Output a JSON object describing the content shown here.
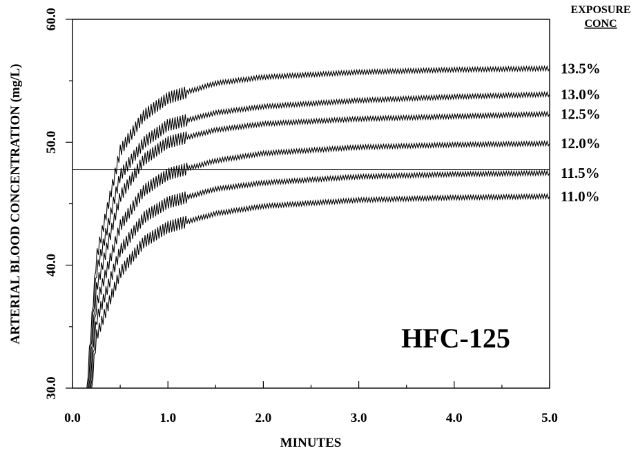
{
  "chart_data": {
    "type": "line",
    "title": "",
    "xlabel": "MINUTES",
    "ylabel": "ARTERIAL BLOOD CONCENTRATION (mg/L)",
    "xlim": [
      0.0,
      5.0
    ],
    "ylim": [
      30.0,
      60.0
    ],
    "x_ticks": [
      "0.0",
      "1.0",
      "2.0",
      "3.0",
      "4.0",
      "5.0"
    ],
    "y_ticks": [
      "30.0",
      "40.0",
      "50.0",
      "60.0"
    ],
    "grid": false,
    "annotation": "HFC-125",
    "legend_title": [
      "EXPOSURE",
      "CONC"
    ],
    "reference_line": {
      "y": 47.8
    },
    "series": [
      {
        "name": "13.5%",
        "x": [
          0.15,
          0.25,
          0.5,
          0.75,
          1.0,
          1.5,
          2.0,
          3.0,
          4.0,
          5.0
        ],
        "values": [
          30.0,
          40.6,
          49.3,
          52.2,
          53.6,
          54.8,
          55.3,
          55.7,
          55.9,
          56.0
        ]
      },
      {
        "name": "13.0%",
        "x": [
          0.16,
          0.25,
          0.5,
          0.75,
          1.0,
          1.5,
          2.0,
          3.0,
          4.0,
          5.0
        ],
        "values": [
          30.0,
          39.4,
          47.3,
          50.0,
          51.4,
          52.4,
          52.9,
          53.4,
          53.7,
          53.9
        ]
      },
      {
        "name": "12.5%",
        "x": [
          0.17,
          0.25,
          0.5,
          0.75,
          1.0,
          1.5,
          2.0,
          3.0,
          4.0,
          5.0
        ],
        "values": [
          30.0,
          38.1,
          45.6,
          48.6,
          50.0,
          51.0,
          51.5,
          51.9,
          52.1,
          52.3
        ]
      },
      {
        "name": "12.0%",
        "x": [
          0.18,
          0.25,
          0.5,
          0.75,
          1.0,
          1.5,
          2.0,
          3.0,
          4.0,
          5.0
        ],
        "values": [
          30.0,
          36.8,
          43.2,
          46.1,
          47.4,
          48.5,
          49.1,
          49.6,
          49.8,
          49.9
        ]
      },
      {
        "name": "11.5%",
        "x": [
          0.19,
          0.25,
          0.5,
          0.75,
          1.0,
          1.5,
          2.0,
          3.0,
          4.0,
          5.0
        ],
        "values": [
          30.0,
          35.5,
          41.2,
          43.9,
          45.1,
          46.2,
          46.7,
          47.2,
          47.4,
          47.5
        ]
      },
      {
        "name": "11.0%",
        "x": [
          0.2,
          0.25,
          0.5,
          0.75,
          1.0,
          1.5,
          2.0,
          3.0,
          4.0,
          5.0
        ],
        "values": [
          30.0,
          34.2,
          39.4,
          41.9,
          43.1,
          44.2,
          44.8,
          45.3,
          45.5,
          45.6
        ]
      }
    ]
  }
}
